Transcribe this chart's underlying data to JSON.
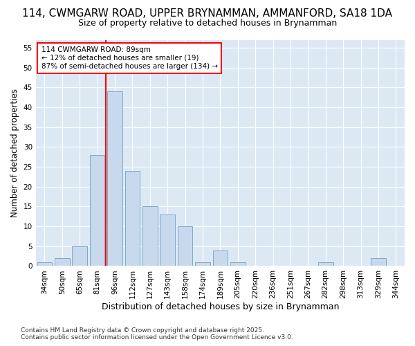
{
  "title_line1": "114, CWMGARW ROAD, UPPER BRYNAMMAN, AMMANFORD, SA18 1DA",
  "title_line2": "Size of property relative to detached houses in Brynamman",
  "xlabel": "Distribution of detached houses by size in Brynamman",
  "ylabel": "Number of detached properties",
  "bar_labels": [
    "34sqm",
    "50sqm",
    "65sqm",
    "81sqm",
    "96sqm",
    "112sqm",
    "127sqm",
    "143sqm",
    "158sqm",
    "174sqm",
    "189sqm",
    "205sqm",
    "220sqm",
    "236sqm",
    "251sqm",
    "267sqm",
    "282sqm",
    "298sqm",
    "313sqm",
    "329sqm",
    "344sqm"
  ],
  "bar_values": [
    1,
    2,
    5,
    28,
    44,
    24,
    15,
    13,
    10,
    1,
    4,
    1,
    0,
    0,
    0,
    0,
    1,
    0,
    0,
    2,
    0
  ],
  "bar_color": "#c9d9ed",
  "bar_edge_color": "#7aaac8",
  "ylim": [
    0,
    57
  ],
  "yticks": [
    0,
    5,
    10,
    15,
    20,
    25,
    30,
    35,
    40,
    45,
    50,
    55
  ],
  "annotation_title": "114 CWMGARW ROAD: 89sqm",
  "annotation_line2": "← 12% of detached houses are smaller (19)",
  "annotation_line3": "87% of semi-detached houses are larger (134) →",
  "footer_line1": "Contains HM Land Registry data © Crown copyright and database right 2025.",
  "footer_line2": "Contains public sector information licensed under the Open Government Licence v3.0.",
  "bg_color": "#ffffff",
  "plot_bg_color": "#dce9f5",
  "grid_color": "#ffffff",
  "title_fontsize": 11,
  "subtitle_fontsize": 9,
  "tick_fontsize": 7.5,
  "ylabel_fontsize": 8.5,
  "xlabel_fontsize": 9,
  "annot_fontsize": 7.5,
  "footer_fontsize": 6.5
}
